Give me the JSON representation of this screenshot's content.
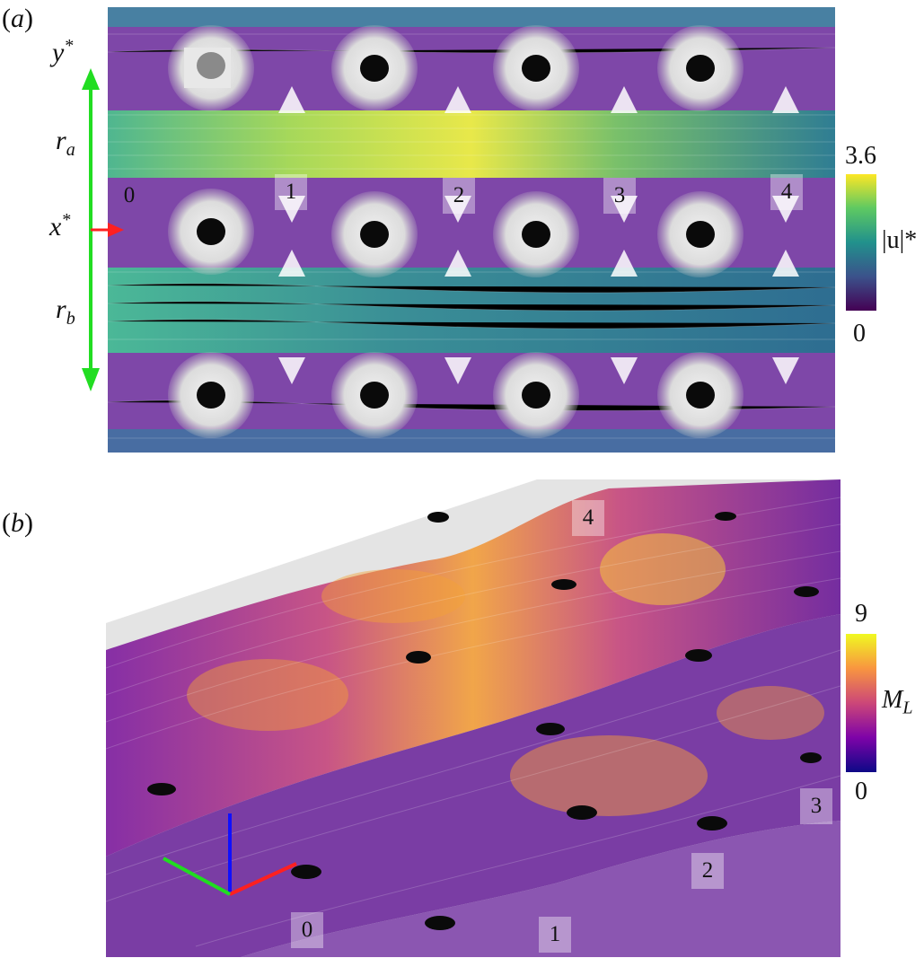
{
  "panel_a": {
    "label_prefix": "(",
    "label_letter": "a",
    "label_suffix": ")",
    "axis_y_label": "y",
    "axis_y_sup": "*",
    "axis_x_label": "x",
    "axis_x_sup": "*",
    "region_a_base": "r",
    "region_a_sub": "a",
    "region_b_base": "r",
    "region_b_sub": "b",
    "markers": [
      "0",
      "1",
      "2",
      "3",
      "4"
    ],
    "colorbar": {
      "max": "3.6",
      "min": "0",
      "title": "|u|*",
      "colors": [
        "#440154",
        "#3b528b",
        "#21918c",
        "#5ec962",
        "#fde725"
      ]
    }
  },
  "panel_b": {
    "label_prefix": "(",
    "label_letter": "b",
    "label_suffix": ")",
    "markers": [
      "0",
      "1",
      "2",
      "3",
      "4"
    ],
    "colorbar": {
      "max": "9",
      "min": "0",
      "title_base": "M",
      "title_sub": "L",
      "colors": [
        "#0d0887",
        "#7e03a8",
        "#cc4778",
        "#f89540",
        "#f0f921"
      ]
    },
    "triad_colors": {
      "x": "#ff2020",
      "y": "#20dd20",
      "z": "#1010ff"
    }
  }
}
